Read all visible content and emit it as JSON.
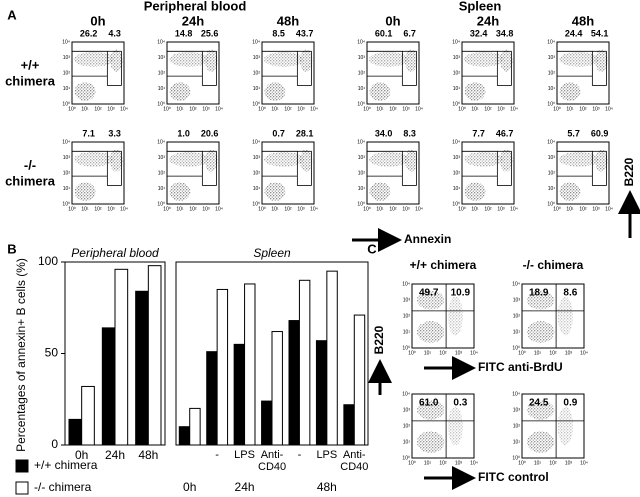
{
  "panel_a": {
    "label": "A",
    "groups": [
      "Peripheral blood",
      "Spleen"
    ],
    "times": [
      "0h",
      "24h",
      "48h",
      "0h",
      "24h",
      "48h"
    ],
    "rows": [
      {
        "label": [
          "+/+",
          "chimera"
        ],
        "percentages": [
          [
            "26.2",
            "4.3"
          ],
          [
            "14.8",
            "25.6"
          ],
          [
            "8.5",
            "43.7"
          ],
          [
            "60.1",
            "6.7"
          ],
          [
            "32.4",
            "34.8"
          ],
          [
            "24.4",
            "54.1"
          ]
        ]
      },
      {
        "label": [
          "-/-",
          "chimera"
        ],
        "percentages": [
          [
            "7.1",
            "3.3"
          ],
          [
            "1.0",
            "20.6"
          ],
          [
            "0.7",
            "28.1"
          ],
          [
            "34.0",
            "8.3"
          ],
          [
            "7.7",
            "46.7"
          ],
          [
            "5.7",
            "60.9"
          ]
        ]
      }
    ],
    "x_axis_label": "Annexin",
    "y_axis_label": "B220"
  },
  "log_ticks": [
    "10⁰",
    "10¹",
    "10²",
    "10³",
    "10⁴"
  ],
  "panel_b": {
    "label": "B"
  },
  "chart_data": [
    {
      "type": "bar",
      "title": "Peripheral blood",
      "ylabel": "Percentages of annexin+ B cells (%)",
      "categories": [
        "0h",
        "24h",
        "48h"
      ],
      "series": [
        {
          "name": "+/+ chimera",
          "color": "#000000",
          "values": [
            14,
            64,
            84
          ]
        },
        {
          "name": "-/- chimera",
          "color": "#ffffff",
          "values": [
            32,
            96,
            98
          ]
        }
      ],
      "ylim": [
        0,
        100
      ],
      "yticks": [
        0,
        50,
        100
      ]
    },
    {
      "type": "bar",
      "title": "Spleen",
      "categories": [
        null,
        "-",
        "LPS",
        "Anti-CD40",
        "-",
        "LPS",
        "Anti-CD40"
      ],
      "groups": [
        "0h",
        "24h",
        "48h"
      ],
      "series": [
        {
          "color": "#000000",
          "values": [
            10,
            51,
            55,
            24,
            68,
            57,
            22
          ]
        },
        {
          "color": "#ffffff",
          "values": [
            20,
            85,
            88,
            62,
            90,
            95,
            71
          ]
        }
      ],
      "ylim": [
        0,
        100
      ]
    }
  ],
  "panel_c": {
    "label": "C",
    "columns": [
      "+/+ chimera",
      "-/- chimera"
    ],
    "y_axis_label": "B220",
    "rows": [
      {
        "axis_label": "FITC anti-BrdU",
        "percentages": [
          [
            "49.7",
            "10.9"
          ],
          [
            "18.9",
            "8.6"
          ]
        ]
      },
      {
        "axis_label": "FITC control",
        "percentages": [
          [
            "61.0",
            "0.3"
          ],
          [
            "24.5",
            "0.9"
          ]
        ]
      }
    ]
  }
}
